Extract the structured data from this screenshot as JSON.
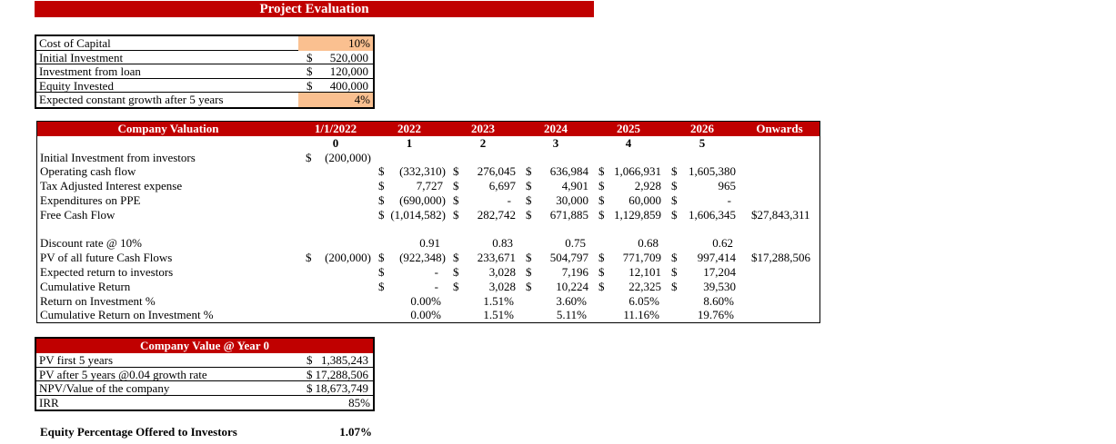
{
  "title": "Project Evaluation",
  "colors": {
    "accent_red": "#C00000",
    "input_highlight_orange": "#FAC090"
  },
  "assumptions": {
    "rows": [
      {
        "label": "Cost of Capital",
        "currency": "",
        "value": "10%",
        "highlight": true
      },
      {
        "label": "Initial Investment",
        "currency": "$",
        "value": "520,000",
        "highlight": false
      },
      {
        "label": "Investment from loan",
        "currency": "$",
        "value": "120,000",
        "highlight": false
      },
      {
        "label": "Equity Invested",
        "currency": "$",
        "value": "400,000",
        "highlight": false
      },
      {
        "label": "Expected constant growth after 5 years",
        "currency": "",
        "value": "4%",
        "highlight": true
      }
    ]
  },
  "valuation": {
    "header": "Company Valuation",
    "columns": [
      "1/1/2022",
      "2022",
      "2023",
      "2024",
      "2025",
      "2026",
      "Onwards"
    ],
    "period_numbers": [
      "0",
      "1",
      "2",
      "3",
      "4",
      "5",
      ""
    ],
    "rows": [
      {
        "label": "Initial Investment from investors",
        "cells": [
          [
            "$",
            "(200,000)"
          ],
          null,
          null,
          null,
          null,
          null,
          null
        ]
      },
      {
        "label": "Operating cash flow",
        "cells": [
          null,
          [
            "$",
            "(332,310)"
          ],
          [
            "$",
            "276,045"
          ],
          [
            "$",
            "636,984"
          ],
          [
            "$",
            "1,066,931"
          ],
          [
            "$",
            "1,605,380"
          ],
          null
        ]
      },
      {
        "label": "Tax Adjusted Interest expense",
        "cells": [
          null,
          [
            "$",
            "7,727"
          ],
          [
            "$",
            "6,697"
          ],
          [
            "$",
            "4,901"
          ],
          [
            "$",
            "2,928"
          ],
          [
            "$",
            "965"
          ],
          null
        ]
      },
      {
        "label": "Expenditures on PPE",
        "cells": [
          null,
          [
            "$",
            "(690,000)"
          ],
          [
            "$",
            "-"
          ],
          [
            "$",
            "30,000"
          ],
          [
            "$",
            "60,000"
          ],
          [
            "$",
            "-"
          ],
          null
        ]
      },
      {
        "label": "Free Cash Flow",
        "cells": [
          null,
          [
            "$",
            "(1,014,582)"
          ],
          [
            "$",
            "282,742"
          ],
          [
            "$",
            "671,885"
          ],
          [
            "$",
            "1,129,859"
          ],
          [
            "$",
            "1,606,345"
          ],
          [
            "$",
            "27,843,311"
          ]
        ]
      },
      {
        "label": "",
        "cells": [
          null,
          null,
          null,
          null,
          null,
          null,
          null
        ]
      },
      {
        "label": "Discount rate @ 10%",
        "cells": [
          null,
          [
            "",
            "0.91"
          ],
          [
            "",
            "0.83"
          ],
          [
            "",
            "0.75"
          ],
          [
            "",
            "0.68"
          ],
          [
            "",
            "0.62"
          ],
          null
        ]
      },
      {
        "label": "PV of all future Cash Flows",
        "cells": [
          [
            "$",
            "(200,000)"
          ],
          [
            "$",
            "(922,348)"
          ],
          [
            "$",
            "233,671"
          ],
          [
            "$",
            "504,797"
          ],
          [
            "$",
            "771,709"
          ],
          [
            "$",
            "997,414"
          ],
          [
            "$",
            "17,288,506"
          ]
        ]
      },
      {
        "label": "Expected return to investors",
        "cells": [
          null,
          [
            "$",
            "-"
          ],
          [
            "$",
            "3,028"
          ],
          [
            "$",
            "7,196"
          ],
          [
            "$",
            "12,101"
          ],
          [
            "$",
            "17,204"
          ],
          null
        ]
      },
      {
        "label": "Cumulative Return",
        "cells": [
          null,
          [
            "$",
            "-"
          ],
          [
            "$",
            "3,028"
          ],
          [
            "$",
            "10,224"
          ],
          [
            "$",
            "22,325"
          ],
          [
            "$",
            "39,530"
          ],
          null
        ]
      },
      {
        "label": "Return on Investment %",
        "cells": [
          null,
          [
            "",
            "0.00%"
          ],
          [
            "",
            "1.51%"
          ],
          [
            "",
            "3.60%"
          ],
          [
            "",
            "6.05%"
          ],
          [
            "",
            "8.60%"
          ],
          null
        ]
      },
      {
        "label": "Cumulative Return on Investment %",
        "cells": [
          null,
          [
            "",
            "0.00%"
          ],
          [
            "",
            "1.51%"
          ],
          [
            "",
            "5.11%"
          ],
          [
            "",
            "11.16%"
          ],
          [
            "",
            "19.76%"
          ],
          null
        ]
      }
    ]
  },
  "company_value": {
    "header": "Company Value @ Year 0",
    "rows": [
      {
        "label": "PV first 5 years",
        "currency": "$",
        "value": "1,385,243"
      },
      {
        "label": "PV after 5 years @0.04 growth rate",
        "currency": "$",
        "value": "17,288,506"
      },
      {
        "label": "NPV/Value of the company",
        "currency": "$",
        "value": "18,673,749"
      },
      {
        "label": "IRR",
        "currency": "",
        "value": "85%"
      }
    ]
  },
  "equity": {
    "label": "Equity Percentage Offered to Investors",
    "value": "1.07%"
  }
}
